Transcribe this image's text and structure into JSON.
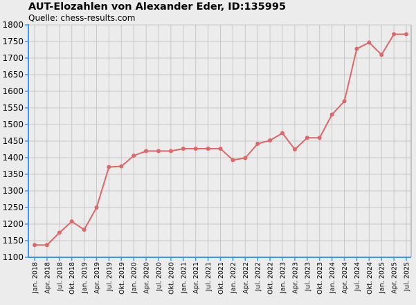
{
  "chart_data": {
    "type": "line",
    "title": "AUT-Elozahlen von Alexander Eder, ID:135995",
    "subtitle": "Quelle: chess-results.com",
    "categories": [
      "Jan. 2018",
      "Apr. 2018",
      "Jul. 2018",
      "Okt. 2018",
      "Jan. 2019",
      "Apr. 2019",
      "Jul. 2019",
      "Okt. 2019",
      "Jan. 2020",
      "Apr. 2020",
      "Jul. 2020",
      "Okt. 2020",
      "Jan. 2021",
      "Apr. 2021",
      "Jul. 2021",
      "Okt. 2021",
      "Jan. 2022",
      "Apr. 2022",
      "Jul. 2022",
      "Okt. 2022",
      "Jan. 2023",
      "Apr. 2023",
      "Jul. 2023",
      "Okt. 2023",
      "Jan. 2024",
      "Apr. 2024",
      "Jul. 2024",
      "Okt. 2024",
      "Jan. 2025",
      "Apr. 2025",
      "Jul. 2025"
    ],
    "series": [
      {
        "values": [
          1137,
          1137,
          1174,
          1208,
          1183,
          1250,
          1372,
          1374,
          1406,
          1420,
          1420,
          1420,
          1427,
          1427,
          1427,
          1427,
          1393,
          1399,
          1442,
          1452,
          1474,
          1425,
          1460,
          1460,
          1530,
          1570,
          1728,
          1747,
          1710,
          1772,
          1772
        ],
        "color": "#E06666"
      }
    ],
    "ylim": [
      1100,
      1800
    ],
    "yticks": [
      1100,
      1150,
      1200,
      1250,
      1300,
      1350,
      1400,
      1450,
      1500,
      1550,
      1600,
      1650,
      1700,
      1750,
      1800
    ],
    "xlabel": "",
    "ylabel": "",
    "grid": true,
    "colors": {
      "background": "#ECECEC",
      "plot_background": "#ECECEC",
      "grid": "#C8C8C8",
      "axis": "#3399FF",
      "line": "#E06666"
    }
  }
}
